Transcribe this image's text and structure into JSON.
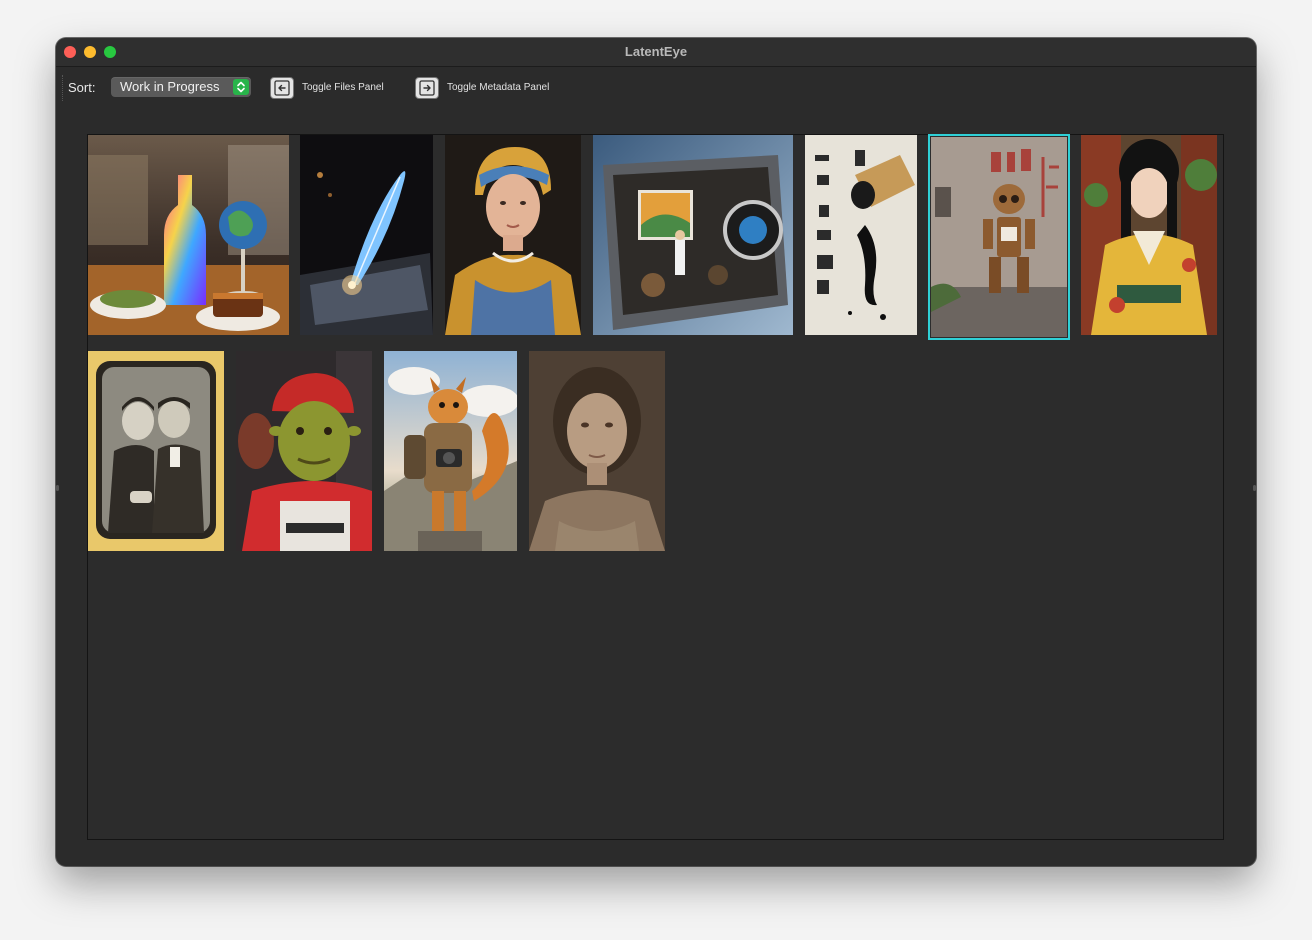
{
  "window": {
    "title": "LatentEye"
  },
  "toolbar": {
    "sort_label": "Sort:",
    "sort_value": "Work in Progress",
    "toggle_files_label": "Toggle Files Panel",
    "toggle_metadata_label": "Toggle Metadata Panel"
  },
  "colors": {
    "selection": "#2fd0d6",
    "stepper": "#28b44a",
    "window_bg": "#2b2b2b"
  },
  "gallery": {
    "thumbnails": [
      {
        "subject": "wine-bottle-and-globe-glass"
      },
      {
        "subject": "glowing-feather-quill"
      },
      {
        "subject": "girl-with-headscarf-portrait"
      },
      {
        "subject": "camera-diorama-with-painter"
      },
      {
        "subject": "ink-brush-and-calligraphy"
      },
      {
        "subject": "robot-sitting-by-graffiti-wall",
        "selected": true
      },
      {
        "subject": "woman-in-yellow-kimono"
      },
      {
        "subject": "vintage-couple-tintype"
      },
      {
        "subject": "ogre-in-red-hoodie"
      },
      {
        "subject": "squirrel-photographer"
      },
      {
        "subject": "faded-girl-portrait"
      }
    ]
  }
}
